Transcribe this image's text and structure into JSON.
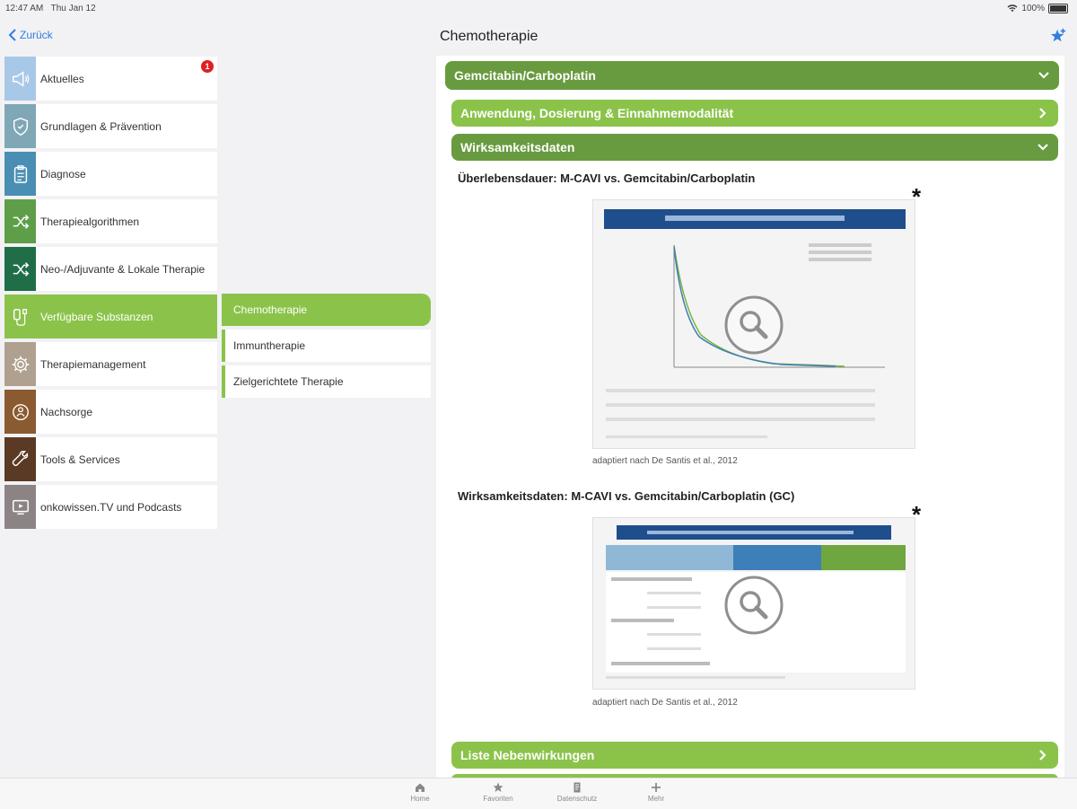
{
  "status": {
    "time": "12:47 AM",
    "date": "Thu Jan 12",
    "battery": "100%"
  },
  "nav": {
    "back_label": "Zurück",
    "title": "Chemotherapie"
  },
  "colors": {
    "accent_green": "#8bc34a",
    "dark_green": "#689b3f",
    "ios_blue": "#2f7de1",
    "badge_red": "#e02020"
  },
  "sidebar": {
    "items": [
      {
        "label": "Aktuelles",
        "color": "#a8c8e8",
        "icon": "megaphone-icon",
        "badge": "1"
      },
      {
        "label": "Grundlagen & Prävention",
        "color": "#7fa7b6",
        "icon": "shield-icon"
      },
      {
        "label": "Diagnose",
        "color": "#4a8fb3",
        "icon": "clipboard-icon"
      },
      {
        "label": "Therapiealgorithmen",
        "color": "#5e9e49",
        "icon": "shuffle-icon"
      },
      {
        "label": "Neo-/Adjuvante & Lokale Therapie",
        "color": "#1f6e48",
        "icon": "shuffle-icon"
      },
      {
        "label": "Verfügbare Substanzen",
        "color": "#8bc34a",
        "icon": "infusion-icon"
      },
      {
        "label": "Therapiemanagement",
        "color": "#b0a090",
        "icon": "gear-icon"
      },
      {
        "label": "Nachsorge",
        "color": "#8a5a30",
        "icon": "person-cycle-icon"
      },
      {
        "label": "Tools & Services",
        "color": "#5a3a24",
        "icon": "wrench-icon"
      },
      {
        "label": "onkowissen.TV und Podcasts",
        "color": "#8c8484",
        "icon": "video-icon"
      }
    ]
  },
  "subnav": {
    "items": [
      {
        "label": "Chemotherapie"
      },
      {
        "label": "Immuntherapie"
      },
      {
        "label": "Zielgerichtete Therapie"
      }
    ]
  },
  "main": {
    "header": "Gemcitabin/Carboplatin",
    "sections": [
      {
        "label": "Anwendung, Dosierung & Einnahmemodalität",
        "icon": "chevron-right-icon"
      },
      {
        "label": "Wirksamkeitsdaten",
        "icon": "chevron-down-icon"
      },
      {
        "label": "Liste Nebenwirkungen",
        "icon": "chevron-right-icon"
      }
    ],
    "figure1": {
      "title": "Überlebensdauer: M-CAVI vs. Gemcitabin/Carboplatin",
      "caption": "adaptiert nach De Santis et al., 2012",
      "marker": "*"
    },
    "figure2": {
      "title": "Wirksamkeitsdaten: M-CAVI vs. Gemcitabin/Carboplatin (GC)",
      "caption": "adaptiert nach De Santis et al., 2012",
      "marker": "*"
    }
  },
  "tabbar": {
    "items": [
      {
        "label": "Home",
        "icon": "home-icon"
      },
      {
        "label": "Favoriten",
        "icon": "star-icon"
      },
      {
        "label": "Datenschutz",
        "icon": "document-icon"
      },
      {
        "label": "Mehr",
        "icon": "plus-icon"
      }
    ]
  }
}
